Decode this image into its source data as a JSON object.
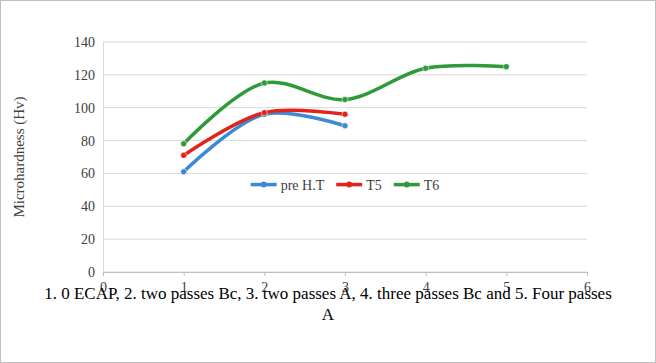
{
  "chart_data": {
    "type": "line",
    "x_label": "1. 0 ECAP, 2. two passes Bc, 3. two passes A, 4. three passes Bc and 5. Four passes A",
    "y_label": "Microhardness (Hv)",
    "x": [
      1,
      2,
      3,
      4,
      5
    ],
    "series": [
      {
        "name": "pre H.T",
        "color": "#3b8ad6",
        "values": [
          61,
          96,
          89,
          null,
          null
        ],
        "marker": "circle",
        "line_style": "smooth"
      },
      {
        "name": "T5",
        "color": "#e2231a",
        "values": [
          71,
          97,
          96,
          null,
          null
        ],
        "marker": "circle",
        "line_style": "smooth"
      },
      {
        "name": "T6",
        "color": "#2f9a3a",
        "values": [
          78,
          115,
          105,
          124,
          125
        ],
        "marker": "circle",
        "line_style": "smooth"
      }
    ],
    "xlim": [
      0,
      6
    ],
    "xticks": [
      0,
      1,
      2,
      3,
      4,
      5,
      6
    ],
    "ylim": [
      0,
      140
    ],
    "yticks": [
      0,
      20,
      40,
      60,
      80,
      100,
      120,
      140
    ],
    "grid": true,
    "legend": "center"
  }
}
